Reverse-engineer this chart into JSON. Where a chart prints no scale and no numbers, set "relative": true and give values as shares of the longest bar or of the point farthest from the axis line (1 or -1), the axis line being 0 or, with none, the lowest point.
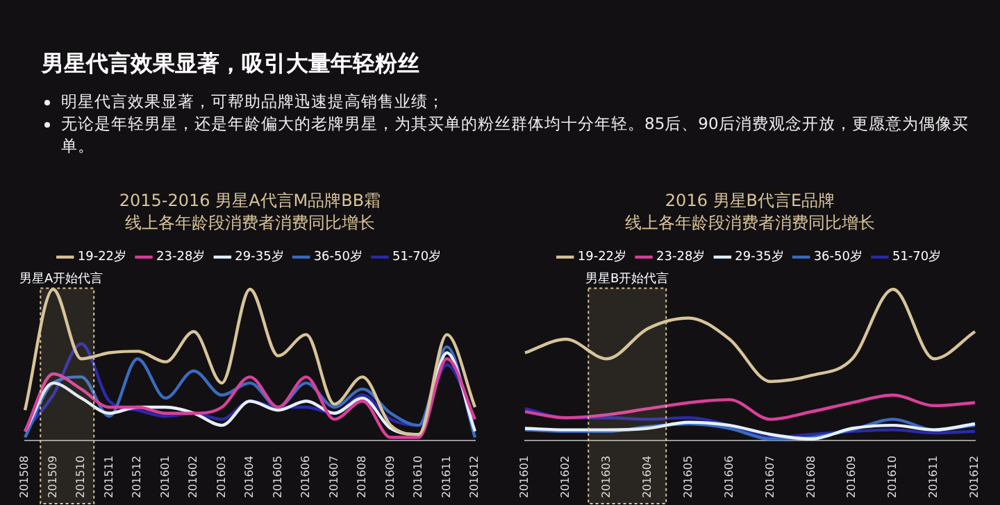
{
  "chart_data": [
    {
      "type": "line",
      "title": "2015-2016 男星A代言M品牌BB霜",
      "subtitle": "线上各年龄段消费者消费同比增长",
      "relative": true,
      "legend": "top",
      "grid": false,
      "marker": "none",
      "annotations": [
        "男星代言效果显著，吸引大量年轻粉丝",
        "明星代言效果显著，可帮助品牌迅速提高销售业绩；",
        "无论是年轻男星，还是年龄偏大的老牌男星，为其买单的粉丝群体均十分年轻。85后、90后消费观念开放，更愿意为偶像买单。"
      ],
      "bands": [
        {
          "axis": "x",
          "from": "201509",
          "to": "201510",
          "label": "男星A开始代言"
        }
      ],
      "categories": [
        "201508",
        "201509",
        "201510",
        "201511",
        "201512",
        "201601",
        "201602",
        "201603",
        "201604",
        "201605",
        "201606",
        "201607",
        "201608",
        "201609",
        "201610",
        "201611",
        "201612"
      ],
      "series": [
        {
          "name": "19-22岁",
          "color": "#d8c49a",
          "values": [
            0.2,
            1.0,
            0.54,
            0.58,
            0.59,
            0.52,
            0.72,
            0.38,
            1.0,
            0.56,
            0.7,
            0.24,
            0.42,
            0.1,
            0.04,
            0.7,
            0.22
          ]
        },
        {
          "name": "23-28岁",
          "color": "#d8409a",
          "values": [
            0.06,
            0.44,
            0.34,
            0.22,
            0.22,
            0.18,
            0.18,
            0.22,
            0.42,
            0.22,
            0.42,
            0.14,
            0.26,
            0.02,
            0.02,
            0.54,
            0.14
          ]
        },
        {
          "name": "29-35岁",
          "color": "#e6f0ff",
          "values": [
            0.06,
            0.38,
            0.28,
            0.18,
            0.22,
            0.22,
            0.18,
            0.1,
            0.26,
            0.2,
            0.26,
            0.18,
            0.28,
            0.08,
            0.04,
            0.58,
            0.06
          ]
        },
        {
          "name": "36-50岁",
          "color": "#3a6cc0",
          "values": [
            0.02,
            0.38,
            0.42,
            0.16,
            0.54,
            0.28,
            0.46,
            0.3,
            0.38,
            0.22,
            0.38,
            0.22,
            0.34,
            0.18,
            0.1,
            0.62,
            0.02
          ]
        },
        {
          "name": "51-70岁",
          "color": "#2a2aa8",
          "values": [
            0.06,
            0.3,
            0.64,
            0.26,
            0.2,
            0.16,
            0.18,
            0.14,
            0.26,
            0.22,
            0.22,
            0.18,
            0.3,
            0.14,
            0.1,
            0.5,
            0.14
          ]
        }
      ]
    },
    {
      "type": "line",
      "title": "2016 男星B代言E品牌",
      "subtitle": "线上各年龄段消费者消费同比增长",
      "relative": true,
      "legend": "top",
      "grid": false,
      "marker": "none",
      "bands": [
        {
          "axis": "x",
          "from": "201603",
          "to": "201604",
          "label": "男星B开始代言"
        }
      ],
      "categories": [
        "201601",
        "201602",
        "201603",
        "201604",
        "201605",
        "201606",
        "201607",
        "201608",
        "201609",
        "201610",
        "201611",
        "201612"
      ],
      "series": [
        {
          "name": "19-22岁",
          "color": "#d8c49a",
          "values": [
            0.58,
            0.67,
            0.54,
            0.74,
            0.81,
            0.67,
            0.39,
            0.43,
            0.54,
            1.0,
            0.54,
            0.72
          ]
        },
        {
          "name": "23-28岁",
          "color": "#d8409a",
          "values": [
            0.19,
            0.15,
            0.17,
            0.21,
            0.25,
            0.27,
            0.14,
            0.19,
            0.25,
            0.3,
            0.23,
            0.25
          ]
        },
        {
          "name": "29-35岁",
          "color": "#e6f0ff",
          "values": [
            0.08,
            0.07,
            0.07,
            0.08,
            0.12,
            0.1,
            0.04,
            0.01,
            0.08,
            0.1,
            0.07,
            0.11
          ]
        },
        {
          "name": "36-50岁",
          "color": "#3a6cc0",
          "values": [
            0.07,
            0.06,
            0.06,
            0.09,
            0.11,
            0.08,
            0.01,
            0.02,
            0.07,
            0.14,
            0.07,
            0.1
          ]
        },
        {
          "name": "51-70岁",
          "color": "#2a2aa8",
          "values": [
            0.21,
            0.15,
            0.15,
            0.14,
            0.15,
            0.1,
            0.02,
            0.04,
            0.06,
            0.07,
            0.05,
            0.06
          ]
        }
      ]
    }
  ]
}
